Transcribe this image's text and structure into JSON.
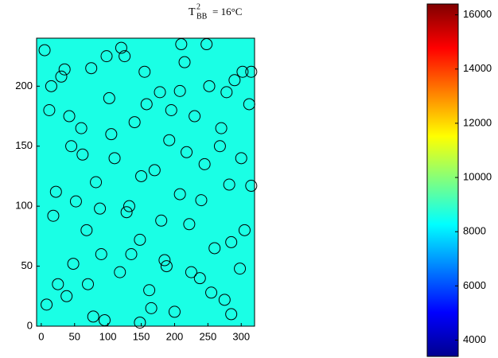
{
  "chart_data": {
    "type": "scatter",
    "title": {
      "base": "T",
      "sup": "2",
      "sub": "BB",
      "rest": "= 16°C"
    },
    "image_level": 8600,
    "xlim": [
      -7,
      320
    ],
    "ylim": [
      0,
      240
    ],
    "xticks": [
      0,
      50,
      100,
      150,
      200,
      250,
      300
    ],
    "yticks": [
      0,
      50,
      100,
      150,
      200
    ],
    "clim": [
      3400,
      16400
    ],
    "cticks": [
      4000,
      6000,
      8000,
      10000,
      12000,
      14000,
      16000
    ],
    "marker_color": "#000000",
    "x": [
      5,
      12,
      18,
      25,
      30,
      38,
      45,
      52,
      60,
      68,
      75,
      82,
      90,
      95,
      102,
      110,
      118,
      125,
      132,
      140,
      148,
      155,
      162,
      170,
      178,
      185,
      192,
      200,
      208,
      215,
      222,
      230,
      238,
      245,
      252,
      260,
      268,
      275,
      282,
      290,
      298,
      305,
      312,
      8,
      22,
      35,
      48,
      62,
      78,
      88,
      105,
      120,
      135,
      150,
      165,
      180,
      195,
      210,
      225,
      240,
      255,
      270,
      285,
      300,
      315,
      15,
      42,
      70,
      98,
      128,
      158,
      188,
      218,
      248,
      278,
      302,
      208,
      148,
      285,
      315
    ],
    "y": [
      230,
      180,
      92,
      35,
      208,
      25,
      150,
      104,
      165,
      80,
      215,
      120,
      60,
      5,
      190,
      140,
      45,
      225,
      100,
      170,
      72,
      212,
      30,
      130,
      195,
      55,
      155,
      12,
      110,
      220,
      85,
      175,
      40,
      135,
      200,
      65,
      150,
      22,
      118,
      205,
      48,
      80,
      185,
      18,
      112,
      214,
      52,
      143,
      8,
      98,
      160,
      232,
      60,
      125,
      15,
      88,
      180,
      235,
      45,
      105,
      28,
      165,
      70,
      140,
      117,
      200,
      175,
      35,
      225,
      95,
      185,
      50,
      145,
      235,
      195,
      212,
      196,
      3,
      10,
      212
    ]
  }
}
